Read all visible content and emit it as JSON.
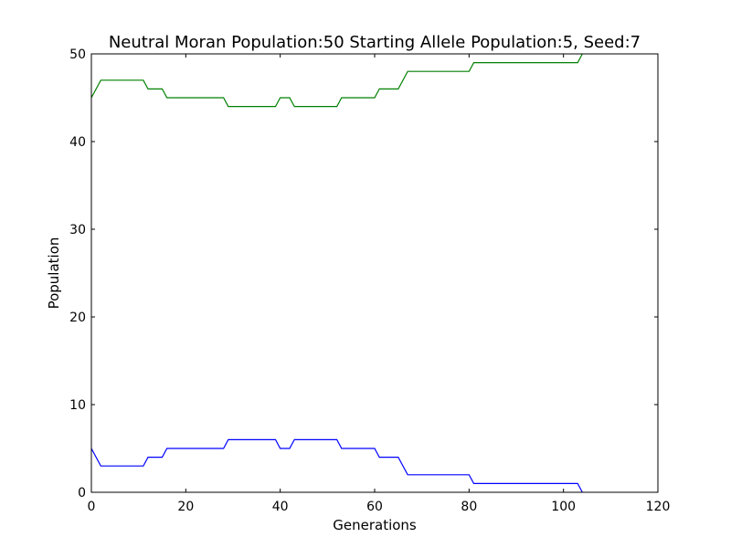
{
  "chart_data": {
    "type": "line",
    "title": "Neutral Moran Population:50 Starting Allele Population:5, Seed:7",
    "xlabel": "Generations",
    "ylabel": "Population",
    "xlim": [
      0,
      120
    ],
    "ylim": [
      0,
      50
    ],
    "xticks": [
      0,
      20,
      40,
      60,
      80,
      100,
      120
    ],
    "yticks": [
      0,
      10,
      20,
      30,
      40,
      50
    ],
    "grid": false,
    "series": [
      {
        "color": "#0000ff",
        "points": [
          [
            0,
            5
          ],
          [
            2,
            3
          ],
          [
            11,
            3
          ],
          [
            12,
            4
          ],
          [
            15,
            4
          ],
          [
            16,
            5
          ],
          [
            28,
            5
          ],
          [
            29,
            6
          ],
          [
            39,
            6
          ],
          [
            40,
            5
          ],
          [
            42,
            5
          ],
          [
            43,
            6
          ],
          [
            52,
            6
          ],
          [
            53,
            5
          ],
          [
            60,
            5
          ],
          [
            61,
            4
          ],
          [
            65,
            4
          ],
          [
            67,
            2
          ],
          [
            80,
            2
          ],
          [
            81,
            1
          ],
          [
            103,
            1
          ],
          [
            104,
            0
          ]
        ]
      },
      {
        "color": "#008000",
        "points": [
          [
            0,
            45
          ],
          [
            2,
            47
          ],
          [
            11,
            47
          ],
          [
            12,
            46
          ],
          [
            15,
            46
          ],
          [
            16,
            45
          ],
          [
            28,
            45
          ],
          [
            29,
            44
          ],
          [
            39,
            44
          ],
          [
            40,
            45
          ],
          [
            42,
            45
          ],
          [
            43,
            44
          ],
          [
            52,
            44
          ],
          [
            53,
            45
          ],
          [
            60,
            45
          ],
          [
            61,
            46
          ],
          [
            65,
            46
          ],
          [
            67,
            48
          ],
          [
            80,
            48
          ],
          [
            81,
            49
          ],
          [
            103,
            49
          ],
          [
            104,
            50
          ]
        ]
      }
    ]
  }
}
